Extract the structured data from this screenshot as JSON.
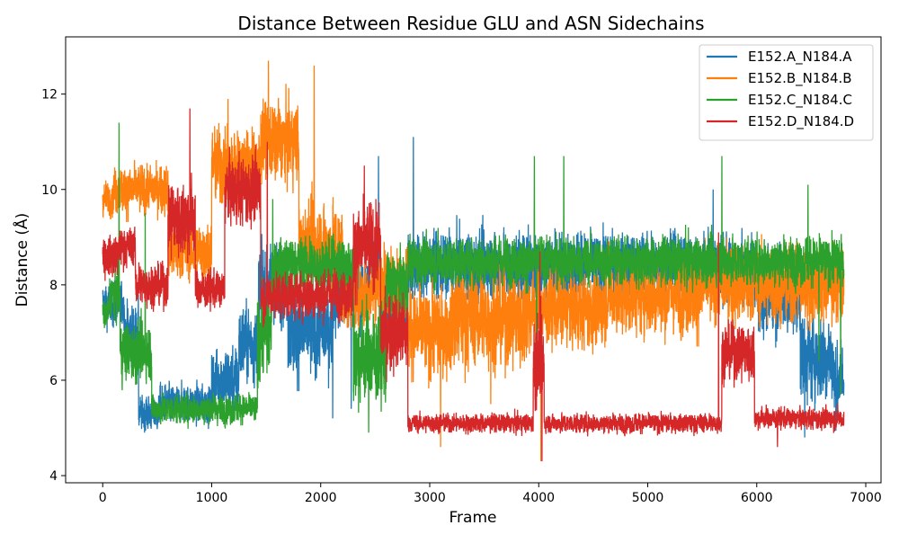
{
  "chart_data": {
    "type": "line",
    "title": "Distance Between Residue GLU and ASN Sidechains",
    "xlabel": "Frame",
    "ylabel": "Distance (Å)",
    "xlim": [
      -340,
      7140
    ],
    "ylim": [
      3.85,
      13.2
    ],
    "xticks": [
      0,
      1000,
      2000,
      3000,
      4000,
      5000,
      6000,
      7000
    ],
    "yticks": [
      4,
      6,
      8,
      10,
      12
    ],
    "grid": false,
    "legend_position": "top-right",
    "frames": 6800,
    "series": [
      {
        "name": "E152.A_N184.A",
        "color": "#1f77b4",
        "segments": [
          [
            0,
            200,
            7.6,
            0.45
          ],
          [
            200,
            330,
            7.0,
            0.6
          ],
          [
            330,
            520,
            5.3,
            0.35
          ],
          [
            520,
            1000,
            5.5,
            0.4
          ],
          [
            1000,
            1250,
            6.0,
            0.7
          ],
          [
            1250,
            1430,
            6.8,
            0.8
          ],
          [
            1430,
            1700,
            8.0,
            0.8
          ],
          [
            1700,
            2100,
            7.0,
            0.9
          ],
          [
            2100,
            2450,
            7.8,
            0.8
          ],
          [
            2450,
            2550,
            8.5,
            0.6
          ],
          [
            2550,
            2800,
            7.5,
            0.7
          ],
          [
            2800,
            5500,
            8.4,
            0.7
          ],
          [
            5500,
            6000,
            8.3,
            0.7
          ],
          [
            6000,
            6400,
            7.8,
            0.8
          ],
          [
            6400,
            6700,
            6.5,
            0.9
          ],
          [
            6700,
            6800,
            6.0,
            0.8
          ]
        ],
        "spikes": [
          [
            2850,
            11.1
          ],
          [
            2170,
            9.3
          ],
          [
            2530,
            10.7
          ],
          [
            4190,
            9.1
          ],
          [
            5600,
            10.0
          ],
          [
            2110,
            5.2
          ],
          [
            2280,
            5.4
          ],
          [
            6440,
            4.8
          ]
        ]
      },
      {
        "name": "E152.B_N184.B",
        "color": "#ff7f0e",
        "segments": [
          [
            0,
            100,
            9.8,
            0.35
          ],
          [
            100,
            600,
            10.0,
            0.5
          ],
          [
            600,
            1000,
            8.7,
            0.6
          ],
          [
            1000,
            1450,
            10.5,
            0.8
          ],
          [
            1450,
            1800,
            11.0,
            0.8
          ],
          [
            1800,
            2200,
            8.8,
            0.9
          ],
          [
            2200,
            2450,
            7.8,
            0.7
          ],
          [
            2450,
            2800,
            8.0,
            0.8
          ],
          [
            2800,
            3200,
            7.0,
            0.9
          ],
          [
            3200,
            3900,
            7.3,
            1.0
          ],
          [
            3900,
            4600,
            7.5,
            0.8
          ],
          [
            4600,
            5500,
            7.8,
            0.8
          ],
          [
            5500,
            6800,
            8.0,
            0.8
          ]
        ],
        "spikes": [
          [
            1520,
            12.7
          ],
          [
            1940,
            12.6
          ],
          [
            1150,
            11.9
          ],
          [
            3100,
            4.6
          ],
          [
            4020,
            4.3
          ],
          [
            3560,
            5.5
          ]
        ]
      },
      {
        "name": "E152.C_N184.C",
        "color": "#2ca02c",
        "segments": [
          [
            0,
            60,
            7.4,
            0.3
          ],
          [
            60,
            160,
            7.8,
            0.5
          ],
          [
            160,
            450,
            6.6,
            0.6
          ],
          [
            450,
            1420,
            5.4,
            0.3
          ],
          [
            1420,
            1550,
            7.0,
            0.9
          ],
          [
            1550,
            2300,
            8.4,
            0.6
          ],
          [
            2300,
            2600,
            6.5,
            1.0
          ],
          [
            2600,
            2800,
            8.0,
            0.7
          ],
          [
            2800,
            6800,
            8.5,
            0.5
          ]
        ],
        "spikes": [
          [
            150,
            11.4
          ],
          [
            390,
            9.5
          ],
          [
            1560,
            9.8
          ],
          [
            3960,
            10.7
          ],
          [
            4230,
            10.7
          ],
          [
            5680,
            10.7
          ],
          [
            2440,
            4.9
          ],
          [
            3980,
            6.3
          ],
          [
            6470,
            10.1
          ],
          [
            6570,
            6.4
          ],
          [
            6770,
            5.7
          ]
        ]
      },
      {
        "name": "E152.D_N184.D",
        "color": "#d62728",
        "segments": [
          [
            0,
            150,
            8.6,
            0.45
          ],
          [
            150,
            300,
            8.8,
            0.4
          ],
          [
            300,
            600,
            8.0,
            0.45
          ],
          [
            600,
            850,
            9.4,
            0.8
          ],
          [
            850,
            1120,
            7.9,
            0.4
          ],
          [
            1120,
            1450,
            10.0,
            0.7
          ],
          [
            1450,
            2300,
            7.8,
            0.5
          ],
          [
            2300,
            2550,
            8.8,
            0.9
          ],
          [
            2550,
            2800,
            7.0,
            0.8
          ],
          [
            2800,
            3950,
            5.1,
            0.2
          ],
          [
            3950,
            4050,
            6.4,
            0.9
          ],
          [
            4050,
            5680,
            5.1,
            0.2
          ],
          [
            5680,
            5980,
            6.6,
            0.6
          ],
          [
            5980,
            6800,
            5.2,
            0.22
          ]
        ],
        "spikes": [
          [
            800,
            11.7
          ],
          [
            1510,
            11.0
          ],
          [
            2400,
            10.5
          ],
          [
            4010,
            8.7
          ],
          [
            4030,
            4.3
          ],
          [
            5650,
            9.1
          ],
          [
            6190,
            4.6
          ]
        ]
      }
    ]
  }
}
